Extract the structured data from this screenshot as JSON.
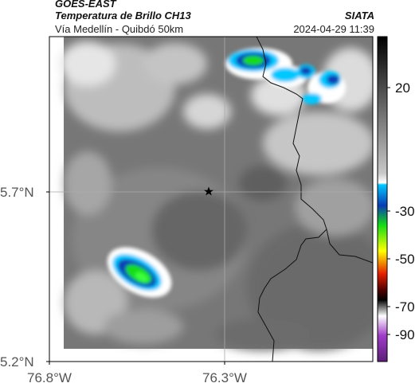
{
  "header": {
    "satellite": "GOES-EAST",
    "product": "Temperatura de Brillo CH13",
    "organization": "SIATA",
    "route": "Vía Medellín - Quibdó 50km",
    "datetime": "2024-04-29 11:39"
  },
  "map": {
    "latitude_labels": [
      "5.7°N",
      "5.2°N"
    ],
    "longitude_labels": [
      "76.8°W",
      "76.3°W"
    ],
    "marker_icon": "star-icon"
  },
  "colorbar": {
    "tick_labels": [
      "20",
      "-30",
      "-50",
      "-70",
      "-90"
    ],
    "colors": {
      "warm_gray": "#6e6e6e",
      "cold_white": "#ffffff",
      "cyan": "#00c8ff",
      "blue": "#0a3cb4",
      "green": "#14dc14",
      "yellow": "#ffff00",
      "red": "#e61e00",
      "black": "#000000",
      "purple": "#a03cc8"
    }
  }
}
